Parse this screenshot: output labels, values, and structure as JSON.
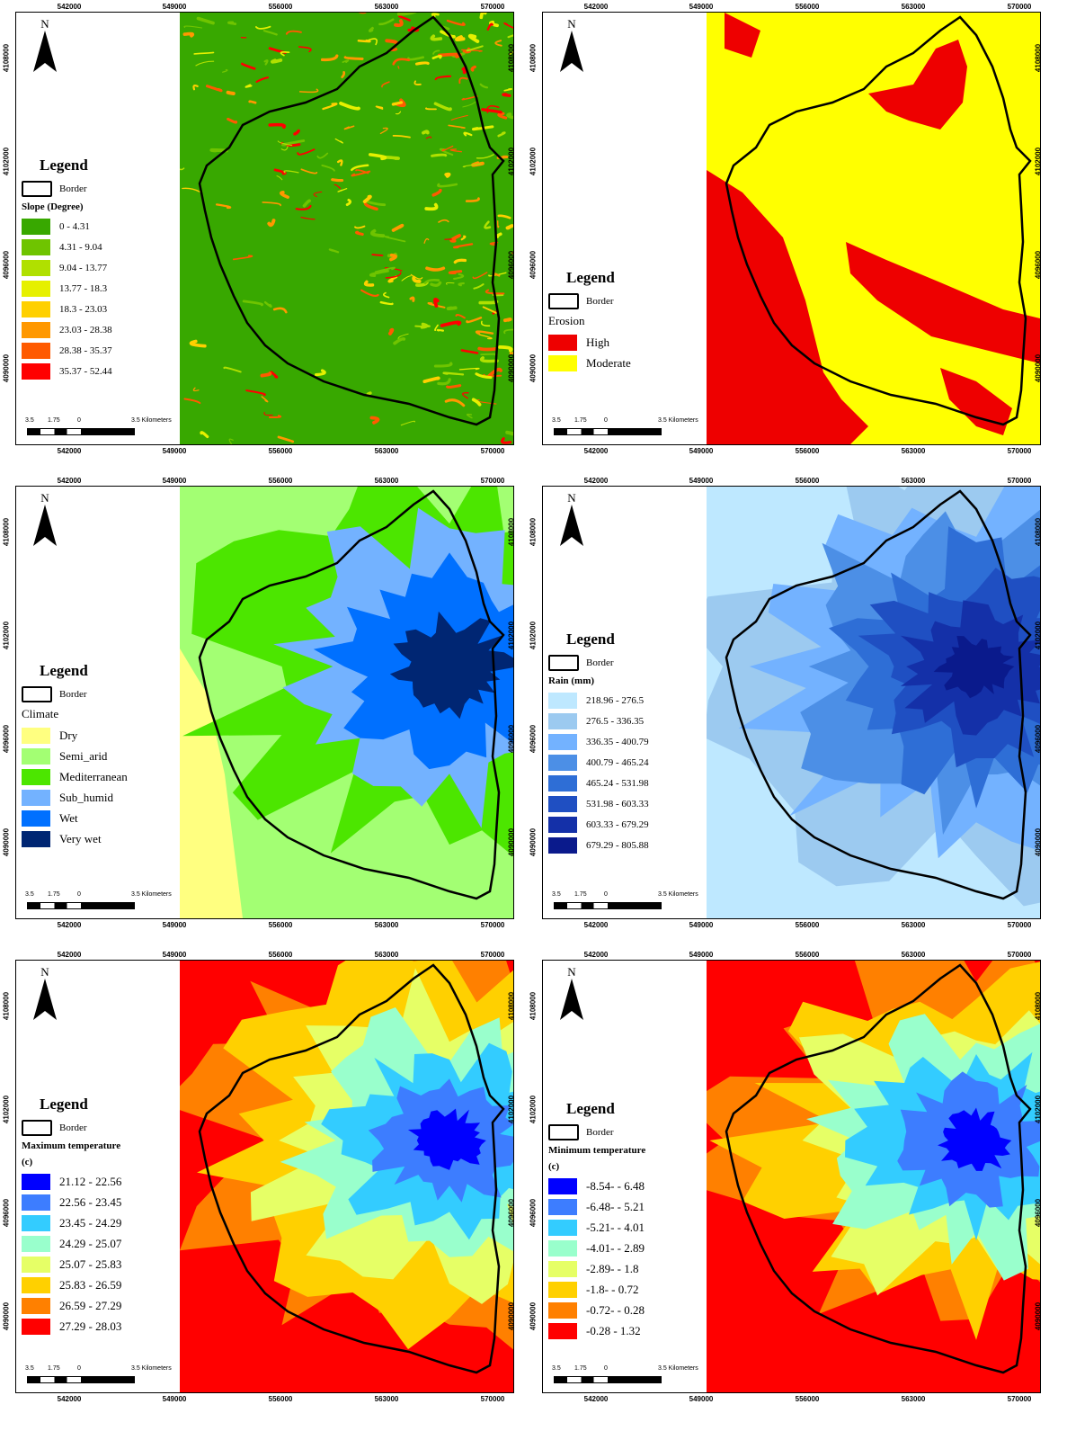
{
  "coords": {
    "x_ticks": [
      "542000",
      "549000",
      "556000",
      "563000",
      "570000"
    ],
    "y_ticks": [
      "4108000",
      "4102000",
      "4096000",
      "4090000"
    ]
  },
  "north_label": "N",
  "scale": {
    "labels": [
      "3.5",
      "1.75",
      "0",
      "3.5 Kilometers"
    ]
  },
  "panels": [
    {
      "id": "slope",
      "legend_title": "Legend",
      "border_label": "Border",
      "category_title": "Slope (Degree)",
      "items": [
        {
          "label": "0 - 4.31",
          "color": "#38a800"
        },
        {
          "label": "4.31 - 9.04",
          "color": "#6fc400"
        },
        {
          "label": "9.04 - 13.77",
          "color": "#b0e000"
        },
        {
          "label": "13.77 - 18.3",
          "color": "#e6f000"
        },
        {
          "label": "18.3 - 23.03",
          "color": "#ffd000"
        },
        {
          "label": "23.03 - 28.38",
          "color": "#ff9800"
        },
        {
          "label": "28.38 - 35.37",
          "color": "#ff5a00"
        },
        {
          "label": "35.37 - 52.44",
          "color": "#ff0000"
        }
      ]
    },
    {
      "id": "erosion",
      "legend_title": "Legend",
      "border_label": "Border",
      "category_title": "Erosion",
      "items": [
        {
          "label": "High",
          "color": "#ee0000"
        },
        {
          "label": "Moderate",
          "color": "#ffff00"
        }
      ]
    },
    {
      "id": "climate",
      "legend_title": "Legend",
      "border_label": "Border",
      "category_title": "Climate",
      "items": [
        {
          "label": "Dry",
          "color": "#ffff80"
        },
        {
          "label": "Semi_arid",
          "color": "#a3ff73"
        },
        {
          "label": "Mediterranean",
          "color": "#4ce600"
        },
        {
          "label": "Sub_humid",
          "color": "#73b2ff"
        },
        {
          "label": "Wet",
          "color": "#0070ff"
        },
        {
          "label": "Very wet",
          "color": "#002673"
        }
      ]
    },
    {
      "id": "rain",
      "legend_title": "Legend",
      "border_label": "Border",
      "category_title": "Rain (mm)",
      "items": [
        {
          "label": "218.96 - 276.5",
          "color": "#bee8ff"
        },
        {
          "label": "276.5 - 336.35",
          "color": "#9ccaf0"
        },
        {
          "label": "336.35 - 400.79",
          "color": "#73b2ff"
        },
        {
          "label": "400.79 - 465.24",
          "color": "#4c8fe6"
        },
        {
          "label": "465.24 - 531.98",
          "color": "#2e6ed6"
        },
        {
          "label": "531.98 - 603.33",
          "color": "#1f4fc2"
        },
        {
          "label": "603.33 - 679.29",
          "color": "#1430a8"
        },
        {
          "label": "679.29 - 805.88",
          "color": "#0a1a8c"
        }
      ]
    },
    {
      "id": "tmax",
      "legend_title": "Legend",
      "border_label": "Border",
      "category_title": "Maximum temperature",
      "unit": "(c)",
      "items": [
        {
          "label": "21.12 - 22.56",
          "color": "#0000ff"
        },
        {
          "label": "22.56 - 23.45",
          "color": "#3d7dff"
        },
        {
          "label": "23.45 - 24.29",
          "color": "#33ccff"
        },
        {
          "label": "24.29 - 25.07",
          "color": "#99ffcc"
        },
        {
          "label": "25.07 - 25.83",
          "color": "#e6ff66"
        },
        {
          "label": "25.83 - 26.59",
          "color": "#ffd000"
        },
        {
          "label": "26.59 - 27.29",
          "color": "#ff8000"
        },
        {
          "label": "27.29 - 28.03",
          "color": "#ff0000"
        }
      ]
    },
    {
      "id": "tmin",
      "legend_title": "Legend",
      "border_label": "Border",
      "category_title": "Minimum temperature",
      "unit": "(c)",
      "items": [
        {
          "label": "-8.54- - 6.48",
          "color": "#0000ff"
        },
        {
          "label": "-6.48- - 5.21",
          "color": "#3d7dff"
        },
        {
          "label": "-5.21- - 4.01",
          "color": "#33ccff"
        },
        {
          "label": "-4.01- - 2.89",
          "color": "#99ffcc"
        },
        {
          "label": "-2.89- - 1.8",
          "color": "#e6ff66"
        },
        {
          "label": "-1.8- - 0.72",
          "color": "#ffd000"
        },
        {
          "label": "-0.72- - 0.28",
          "color": "#ff8000"
        },
        {
          "label": "-0.28 - 1.32",
          "color": "#ff0000"
        }
      ]
    }
  ]
}
